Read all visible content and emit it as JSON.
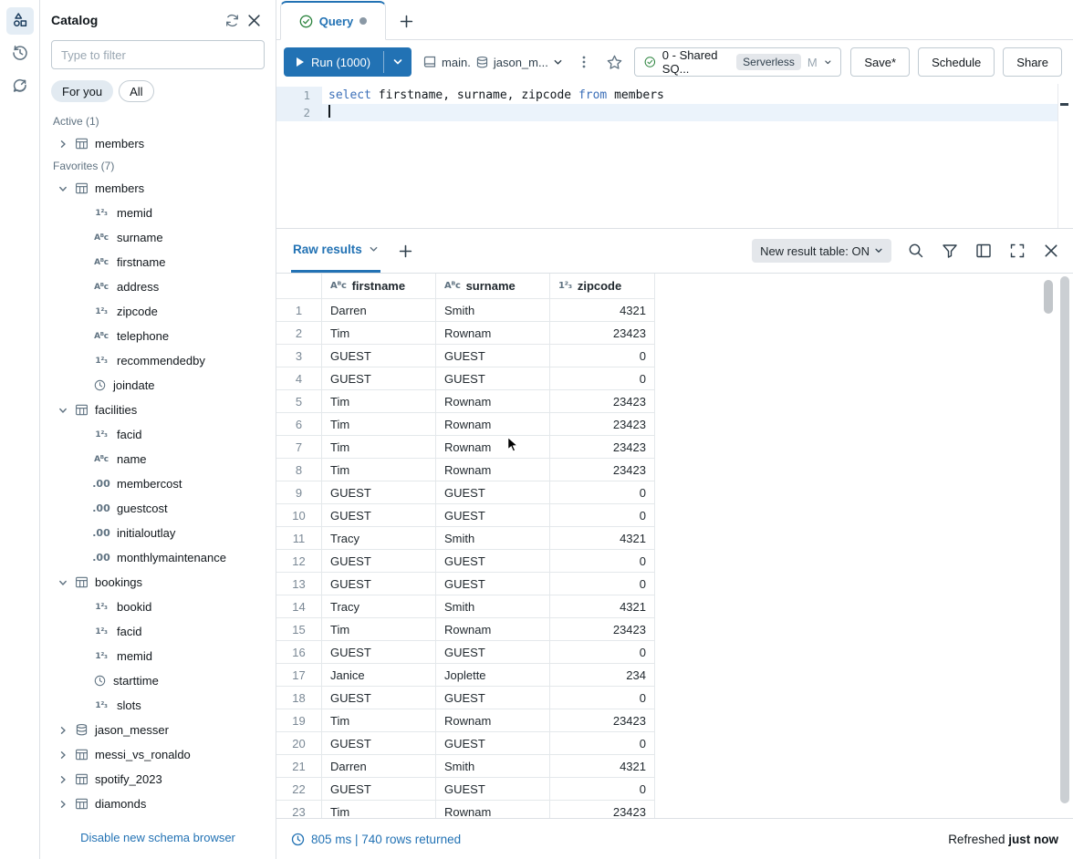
{
  "sidebar": {
    "title": "Catalog",
    "filter_placeholder": "Type to filter",
    "pill_for_you": "For you",
    "pill_all": "All",
    "footer_link": "Disable new schema browser",
    "tree": [
      {
        "kind": "section",
        "label": "Active (1)"
      },
      {
        "kind": "table",
        "label": "members",
        "expanded": false
      },
      {
        "kind": "section",
        "label": "Favorites (7)"
      },
      {
        "kind": "table",
        "label": "members",
        "expanded": true
      },
      {
        "kind": "column",
        "dtype": "int",
        "label": "memid"
      },
      {
        "kind": "column",
        "dtype": "string",
        "label": "surname"
      },
      {
        "kind": "column",
        "dtype": "string",
        "label": "firstname"
      },
      {
        "kind": "column",
        "dtype": "string",
        "label": "address"
      },
      {
        "kind": "column",
        "dtype": "int",
        "label": "zipcode"
      },
      {
        "kind": "column",
        "dtype": "string",
        "label": "telephone"
      },
      {
        "kind": "column",
        "dtype": "int",
        "label": "recommendedby"
      },
      {
        "kind": "column",
        "dtype": "timestamp",
        "label": "joindate"
      },
      {
        "kind": "table",
        "label": "facilities",
        "expanded": true
      },
      {
        "kind": "column",
        "dtype": "int",
        "label": "facid"
      },
      {
        "kind": "column",
        "dtype": "string",
        "label": "name"
      },
      {
        "kind": "column",
        "dtype": "decimal",
        "label": "membercost"
      },
      {
        "kind": "column",
        "dtype": "decimal",
        "label": "guestcost"
      },
      {
        "kind": "column",
        "dtype": "decimal",
        "label": "initialoutlay"
      },
      {
        "kind": "column",
        "dtype": "decimal",
        "label": "monthlymaintenance"
      },
      {
        "kind": "table",
        "label": "bookings",
        "expanded": true
      },
      {
        "kind": "column",
        "dtype": "int",
        "label": "bookid"
      },
      {
        "kind": "column",
        "dtype": "int",
        "label": "facid"
      },
      {
        "kind": "column",
        "dtype": "int",
        "label": "memid"
      },
      {
        "kind": "column",
        "dtype": "timestamp",
        "label": "starttime"
      },
      {
        "kind": "column",
        "dtype": "int",
        "label": "slots"
      },
      {
        "kind": "database",
        "label": "jason_messer",
        "expanded": false
      },
      {
        "kind": "table",
        "label": "messi_vs_ronaldo",
        "expanded": false
      },
      {
        "kind": "table",
        "label": "spotify_2023",
        "expanded": false
      },
      {
        "kind": "table",
        "label": "diamonds",
        "expanded": false
      }
    ]
  },
  "tabbar": {
    "query_tab": "Query"
  },
  "toolbar": {
    "run_label": "Run (1000)",
    "catalog_part": "main.",
    "schema_part": "jason_m...",
    "warehouse_label": "0 - Shared SQ...",
    "warehouse_badge": "Serverless",
    "warehouse_size": "M",
    "save_label": "Save*",
    "schedule_label": "Schedule",
    "share_label": "Share"
  },
  "editor": {
    "lines": [
      {
        "num": "1",
        "active": false,
        "tokens": [
          {
            "text": "select",
            "type": "kw"
          },
          {
            "text": " firstname, surname, zipcode ",
            "type": "plain"
          },
          {
            "text": "from",
            "type": "kw"
          },
          {
            "text": " members",
            "type": "plain"
          }
        ]
      },
      {
        "num": "2",
        "active": true,
        "tokens": []
      }
    ]
  },
  "results": {
    "tab_label": "Raw results",
    "new_result_toggle": "New result table: ON",
    "columns": [
      {
        "label": "firstname",
        "dtype": "string"
      },
      {
        "label": "surname",
        "dtype": "string"
      },
      {
        "label": "zipcode",
        "dtype": "int"
      }
    ],
    "rows": [
      [
        "Darren",
        "Smith",
        "4321"
      ],
      [
        "Tim",
        "Rownam",
        "23423"
      ],
      [
        "GUEST",
        "GUEST",
        "0"
      ],
      [
        "GUEST",
        "GUEST",
        "0"
      ],
      [
        "Tim",
        "Rownam",
        "23423"
      ],
      [
        "Tim",
        "Rownam",
        "23423"
      ],
      [
        "Tim",
        "Rownam",
        "23423"
      ],
      [
        "Tim",
        "Rownam",
        "23423"
      ],
      [
        "GUEST",
        "GUEST",
        "0"
      ],
      [
        "GUEST",
        "GUEST",
        "0"
      ],
      [
        "Tracy",
        "Smith",
        "4321"
      ],
      [
        "GUEST",
        "GUEST",
        "0"
      ],
      [
        "GUEST",
        "GUEST",
        "0"
      ],
      [
        "Tracy",
        "Smith",
        "4321"
      ],
      [
        "Tim",
        "Rownam",
        "23423"
      ],
      [
        "GUEST",
        "GUEST",
        "0"
      ],
      [
        "Janice",
        "Joplette",
        "234"
      ],
      [
        "GUEST",
        "GUEST",
        "0"
      ],
      [
        "Tim",
        "Rownam",
        "23423"
      ],
      [
        "GUEST",
        "GUEST",
        "0"
      ],
      [
        "Darren",
        "Smith",
        "4321"
      ],
      [
        "GUEST",
        "GUEST",
        "0"
      ],
      [
        "Tim",
        "Rownam",
        "23423"
      ]
    ],
    "status": "805 ms | 740 rows returned",
    "refreshed_prefix": "Refreshed",
    "refreshed_value": "just now"
  },
  "icon_glyphs": {
    "int": "1²₃",
    "string": "Aᴮc",
    "decimal": ".00"
  },
  "colors": {
    "accent": "#2272B4",
    "keyword": "#3B6FB8",
    "green": "#2E8540",
    "badge_bg": "#E4E7EB"
  }
}
